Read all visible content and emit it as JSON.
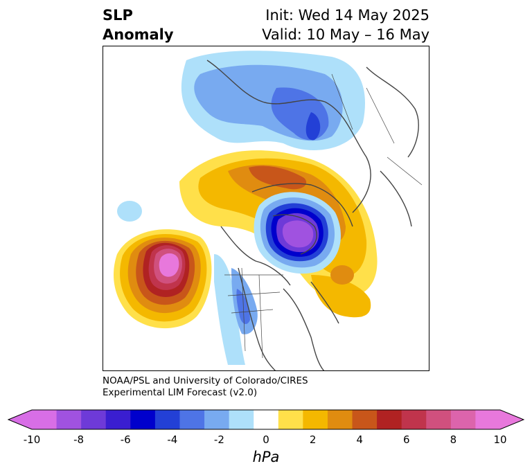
{
  "title": {
    "left_line1": "SLP",
    "left_line2": "Anomaly",
    "right_line1": "Init: Wed 14 May 2025",
    "right_line2": "Valid: 10 May – 16 May"
  },
  "credit": {
    "line1": "NOAA/PSL and University of Colorado/CIRES",
    "line2": "Experimental LIM Forecast (v2.0)"
  },
  "colorbar": {
    "unit": "hPa",
    "colors": [
      "#d86ee6",
      "#a052e0",
      "#6e3ad8",
      "#3a1ed0",
      "#0000cc",
      "#2340d6",
      "#4e74e6",
      "#78aaf0",
      "#aee0fa",
      "#ffffff",
      "#ffe04a",
      "#f4b800",
      "#e08c10",
      "#c8561a",
      "#b02222",
      "#c0344c",
      "#d0507e",
      "#dc64ac",
      "#e878dc"
    ],
    "under_color": "#d86ee6",
    "over_color": "#e878dc",
    "tick_labels": [
      "-10",
      "-8",
      "-6",
      "-4",
      "-2",
      "0",
      "2",
      "4",
      "6",
      "8",
      "10"
    ]
  }
}
